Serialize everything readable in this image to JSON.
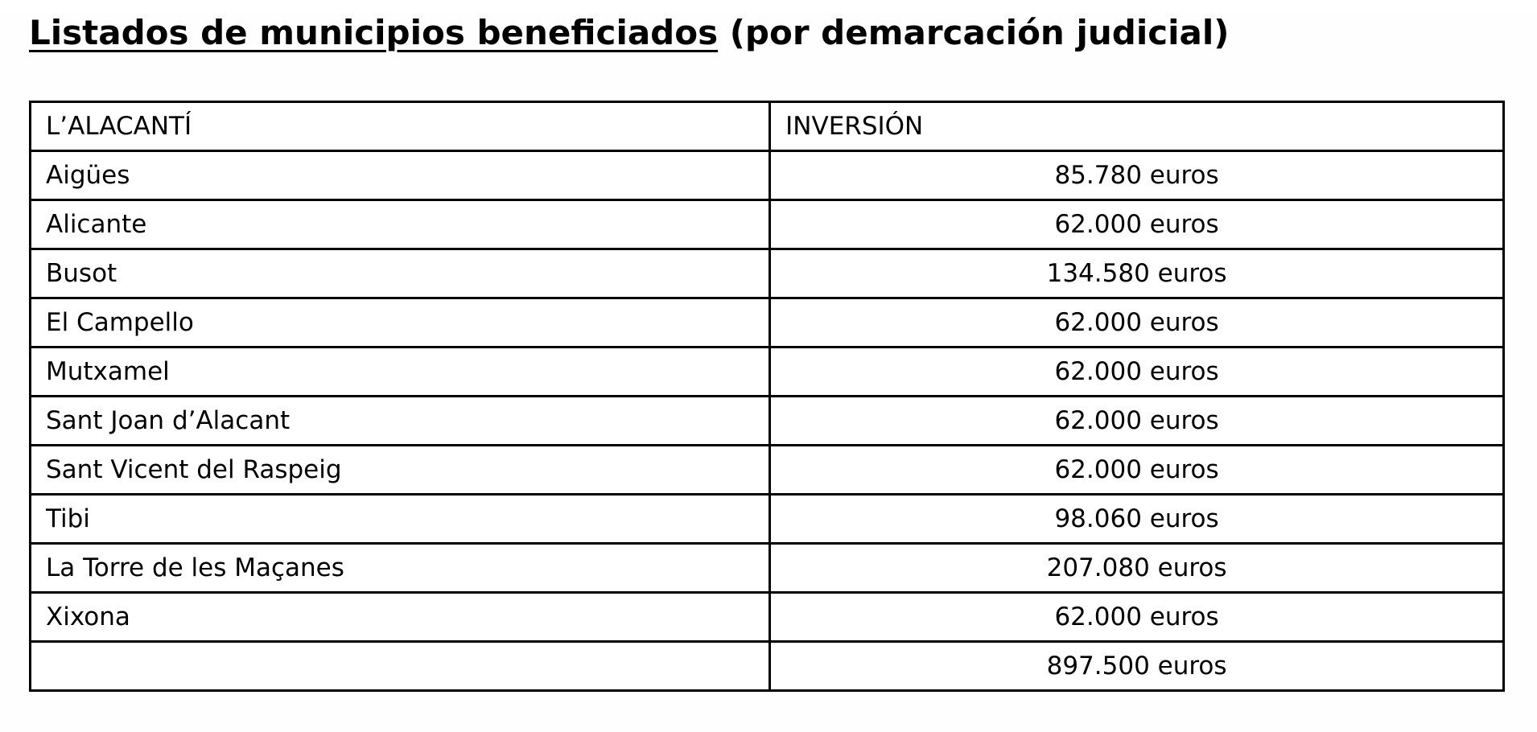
{
  "page": {
    "title_underlined": "Listados de municipios beneficiados",
    "title_rest": " (por demarcación judicial)"
  },
  "table": {
    "headers": [
      "L’ALACANTÍ",
      "INVERSIÓN"
    ],
    "rows": [
      {
        "municipality": "Aigües",
        "investment": "85.780 euros"
      },
      {
        "municipality": "Alicante",
        "investment": "62.000 euros"
      },
      {
        "municipality": "Busot",
        "investment": "134.580 euros"
      },
      {
        "municipality": "El Campello",
        "investment": "62.000 euros"
      },
      {
        "municipality": "Mutxamel",
        "investment": "62.000 euros"
      },
      {
        "municipality": "Sant Joan d’Alacant",
        "investment": "62.000 euros"
      },
      {
        "municipality": "Sant Vicent del Raspeig",
        "investment": "62.000 euros"
      },
      {
        "municipality": "Tibi",
        "investment": "98.060 euros"
      },
      {
        "municipality": "La Torre de les Maçanes",
        "investment": "207.080 euros"
      },
      {
        "municipality": "Xixona",
        "investment": "62.000 euros"
      }
    ],
    "total_row": {
      "municipality": "",
      "investment": "897.500 euros"
    },
    "colors": {
      "text": "#000000",
      "border": "#000000",
      "background": "#ffffff"
    }
  }
}
